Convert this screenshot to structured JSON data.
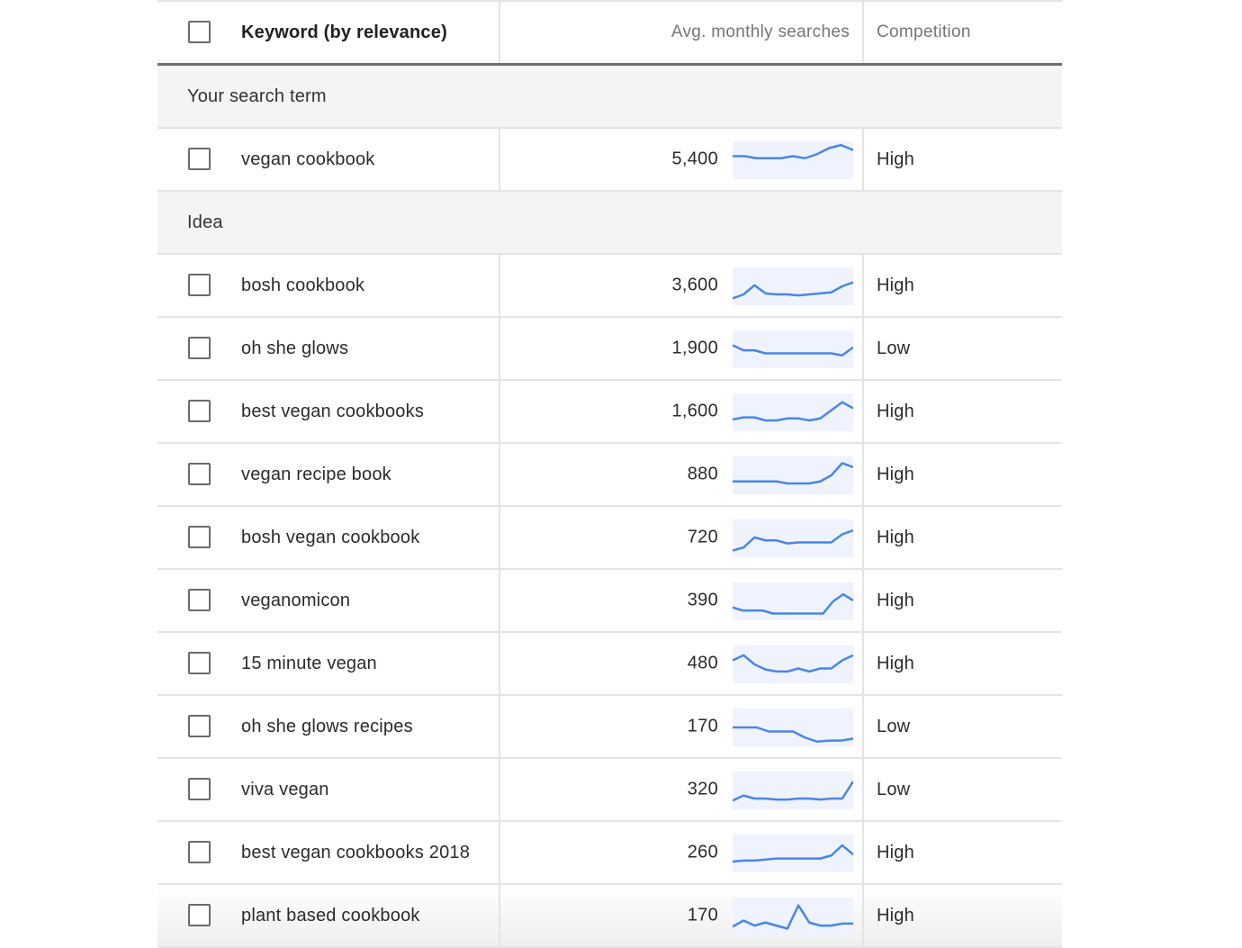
{
  "header": {
    "keyword_label": "Keyword (by relevance)",
    "avg_label": "Avg. monthly searches",
    "competition_label": "Competition"
  },
  "groups": {
    "search_term_label": "Your search term",
    "idea_label": "Idea"
  },
  "search_term": {
    "keyword": "vegan cookbook",
    "avg": "5,400",
    "competition": "High",
    "trend": [
      30,
      30,
      28,
      28,
      28,
      30,
      28,
      32,
      38,
      41,
      36
    ]
  },
  "ideas": [
    {
      "keyword": "bosh cookbook",
      "avg": "3,600",
      "competition": "High",
      "trend": [
        14,
        18,
        27,
        19,
        18,
        18,
        17,
        18,
        19,
        20,
        26,
        30
      ]
    },
    {
      "keyword": "oh she glows",
      "avg": "1,900",
      "competition": "Low",
      "trend": [
        30,
        25,
        25,
        22,
        22,
        22,
        22,
        22,
        22,
        22,
        20,
        28
      ]
    },
    {
      "keyword": "best vegan cookbooks",
      "avg": "1,600",
      "competition": "High",
      "trend": [
        19,
        21,
        21,
        18,
        18,
        20,
        20,
        18,
        20,
        28,
        36,
        30
      ]
    },
    {
      "keyword": "vegan recipe book",
      "avg": "880",
      "competition": "High",
      "trend": [
        20,
        20,
        20,
        20,
        20,
        18,
        18,
        18,
        20,
        26,
        38,
        34
      ]
    },
    {
      "keyword": "bosh vegan cookbook",
      "avg": "720",
      "competition": "High",
      "trend": [
        14,
        17,
        27,
        24,
        24,
        21,
        22,
        22,
        22,
        22,
        30,
        34
      ]
    },
    {
      "keyword": "veganomicon",
      "avg": "390",
      "competition": "High",
      "trend": [
        20,
        17,
        17,
        17,
        14,
        14,
        14,
        14,
        14,
        14,
        26,
        33,
        27
      ]
    },
    {
      "keyword": "15 minute vegan",
      "avg": "480",
      "competition": "High",
      "trend": [
        30,
        35,
        26,
        21,
        19,
        19,
        22,
        19,
        22,
        22,
        30,
        35
      ]
    },
    {
      "keyword": "oh she glows recipes",
      "avg": "170",
      "competition": "Low",
      "trend": [
        26,
        26,
        26,
        22,
        22,
        22,
        16,
        12,
        13,
        13,
        15
      ]
    },
    {
      "keyword": "viva vegan",
      "avg": "320",
      "competition": "Low",
      "trend": [
        16,
        21,
        18,
        18,
        17,
        17,
        18,
        18,
        17,
        18,
        18,
        35
      ]
    },
    {
      "keyword": "best vegan cookbooks 2018",
      "avg": "260",
      "competition": "High",
      "trend": [
        18,
        19,
        19,
        20,
        21,
        21,
        21,
        21,
        21,
        24,
        34,
        25
      ]
    },
    {
      "keyword": "plant based cookbook",
      "avg": "170",
      "competition": "High",
      "trend": [
        16,
        22,
        17,
        20,
        17,
        14,
        37,
        20,
        17,
        17,
        19,
        19
      ]
    }
  ],
  "colors": {
    "sparkline_line": "#4a86e8",
    "sparkline_fill": "#eef3fd",
    "divider": "#e4e4e4",
    "group_bg": "#f4f4f4"
  }
}
